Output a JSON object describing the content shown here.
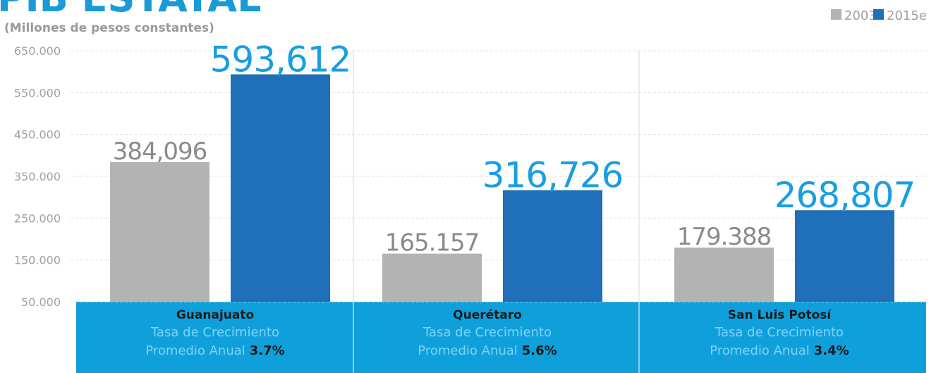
{
  "chart_data": {
    "type": "bar",
    "title": "PIB ESTATAL",
    "subtitle": "(Millones de pesos constantes)",
    "categories": [
      "Guanajuato",
      "Querétaro",
      "San Luis Potosí"
    ],
    "series": [
      {
        "name": "2003",
        "color": "#b3b3b3",
        "values": [
          384096,
          165157,
          179388
        ],
        "value_labels": [
          "384,096",
          "165.157",
          "179.388"
        ]
      },
      {
        "name": "2015e",
        "color": "#1f6fb9",
        "values": [
          593612,
          316726,
          268807
        ],
        "value_labels": [
          "593,612",
          "316,726",
          "268,807"
        ]
      }
    ],
    "ylim": [
      50000,
      650000
    ],
    "yticks": [
      {
        "value": 50000,
        "label": "50.000"
      },
      {
        "value": 150000,
        "label": "150.000"
      },
      {
        "value": 250000,
        "label": "250.000"
      },
      {
        "value": 350000,
        "label": "350.000"
      },
      {
        "value": 450000,
        "label": "450.000"
      },
      {
        "value": 550000,
        "label": "550.000"
      },
      {
        "value": 650000,
        "label": "650.000"
      }
    ],
    "grid": true,
    "legend": "top-right",
    "panel_line1": "Tasa de Crecimiento",
    "panel_line2": "Promedio Anual",
    "growth_labels": [
      "3.7%",
      "5.6%",
      "3.4%"
    ]
  }
}
